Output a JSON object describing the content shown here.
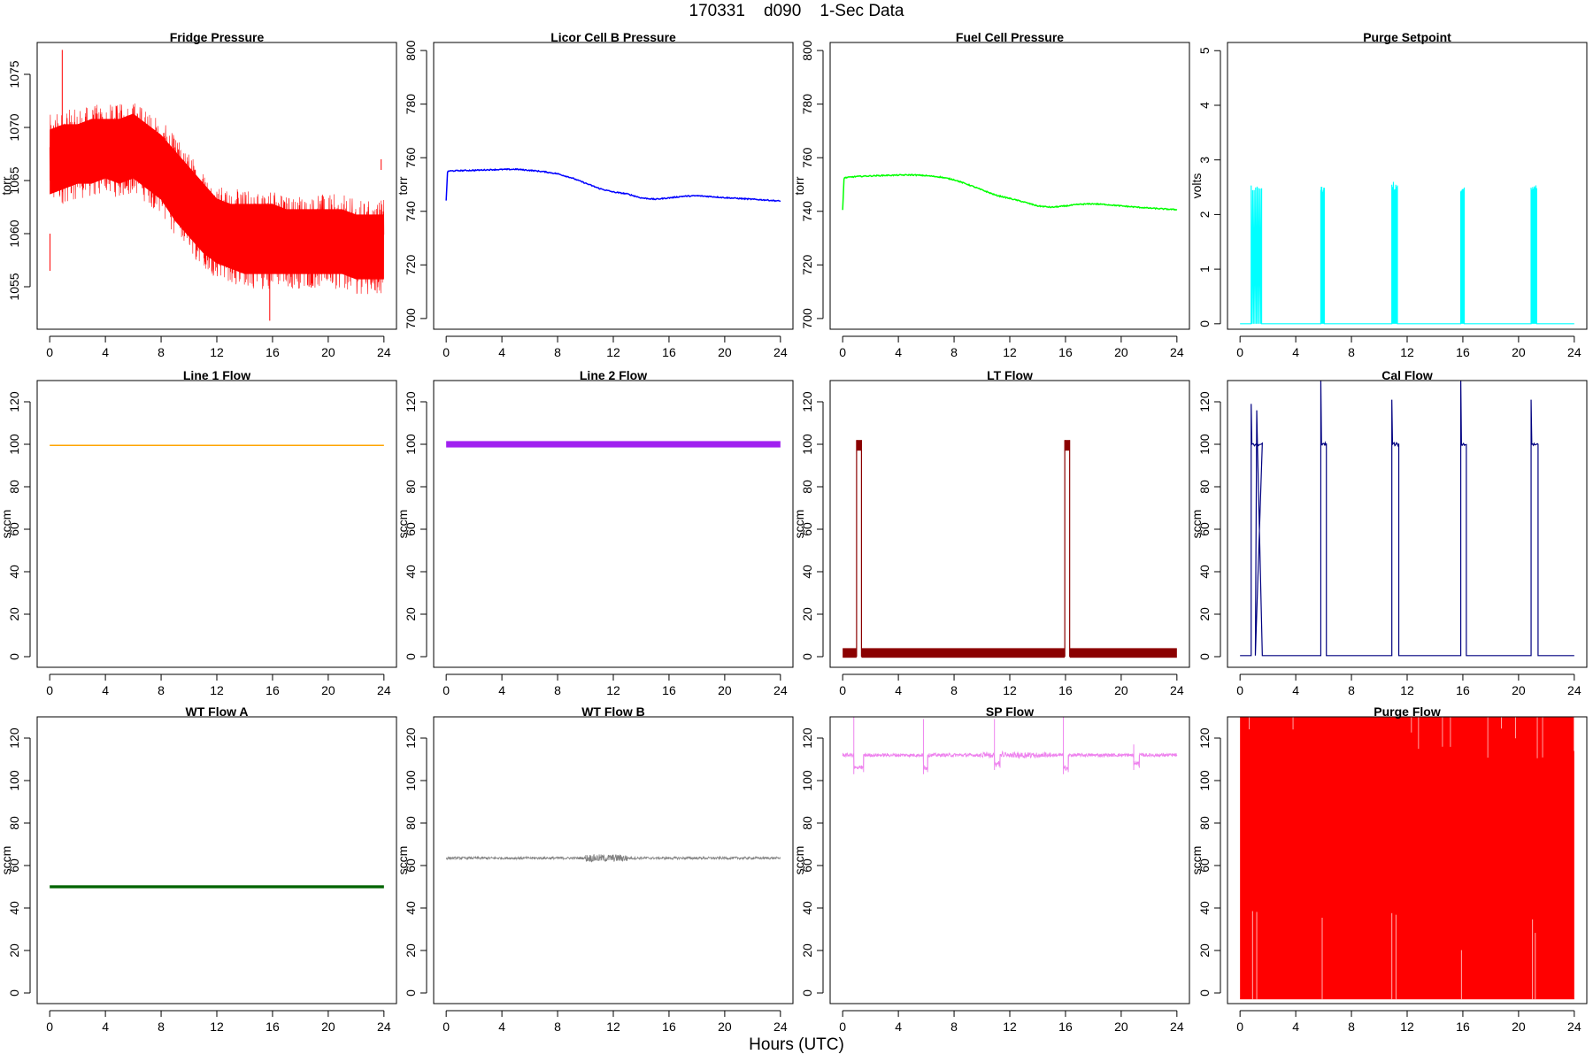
{
  "figure": {
    "title": "170331    d090    1-Sec Data",
    "xlabel": "Hours (UTC)"
  },
  "chart_data": [
    {
      "type": "line",
      "title": "Fridge Pressure",
      "ylabel": "torr",
      "color": "#ff0000",
      "xlim": [
        -0.9,
        24.9
      ],
      "ylim": [
        1051,
        1078
      ],
      "xticks": [
        0,
        4,
        8,
        12,
        16,
        20,
        24
      ],
      "yticks": [
        1055,
        1060,
        1065,
        1070,
        1075
      ],
      "band": {
        "x": [
          0,
          1,
          2,
          3,
          4,
          5,
          6,
          7,
          8,
          9,
          10,
          11,
          12,
          13,
          14,
          15,
          16,
          17,
          18,
          19,
          20,
          21,
          22,
          23,
          24
        ],
        "lower": [
          1062.5,
          1063,
          1063.5,
          1063.5,
          1064,
          1063.5,
          1064,
          1063,
          1062,
          1060,
          1058.5,
          1057,
          1056,
          1055.5,
          1055,
          1055,
          1055,
          1055,
          1055,
          1055,
          1055,
          1055,
          1054.5,
          1054.5,
          1054.5
        ],
        "upper": [
          1071,
          1071.5,
          1071.5,
          1072,
          1072,
          1072,
          1072.5,
          1071.5,
          1070.5,
          1069,
          1067.5,
          1066,
          1064.5,
          1064,
          1064,
          1064,
          1064,
          1063.5,
          1063.5,
          1063.5,
          1063.5,
          1063.5,
          1063,
          1063,
          1063
        ]
      },
      "spikes": [
        [
          0.9,
          1077.3
        ],
        [
          15.8,
          1051.8
        ],
        [
          0.02,
          1056.5
        ],
        [
          23.8,
          1067
        ]
      ]
    },
    {
      "type": "line",
      "title": "Licor Cell B Pressure",
      "ylabel": "torr",
      "color": "#0000ff",
      "xlim": [
        -0.9,
        24.9
      ],
      "ylim": [
        696,
        803
      ],
      "xticks": [
        0,
        4,
        8,
        12,
        16,
        20,
        24
      ],
      "yticks": [
        700,
        720,
        740,
        760,
        780,
        800
      ],
      "series": {
        "x": [
          0,
          0.1,
          1,
          2,
          3,
          4,
          5,
          6,
          7,
          8,
          9,
          10,
          11,
          12,
          13,
          14,
          15,
          16,
          17,
          18,
          19,
          20,
          21,
          22,
          23,
          24
        ],
        "y": [
          744,
          755,
          755.2,
          755.3,
          755.5,
          755.6,
          755.7,
          755.3,
          754.8,
          754,
          752.5,
          750.5,
          748.5,
          747.2,
          746.5,
          745,
          744.5,
          745,
          745.6,
          745.8,
          745.5,
          745.1,
          744.8,
          744.5,
          744.2,
          743.8
        ]
      }
    },
    {
      "type": "line",
      "title": "Fuel Cell Pressure",
      "ylabel": "torr",
      "color": "#00ff00",
      "xlim": [
        -0.9,
        24.9
      ],
      "ylim": [
        696,
        803
      ],
      "xticks": [
        0,
        4,
        8,
        12,
        16,
        20,
        24
      ],
      "yticks": [
        700,
        720,
        740,
        760,
        780,
        800
      ],
      "series": {
        "x": [
          0,
          0.1,
          1,
          2,
          3,
          4,
          5,
          6,
          7,
          8,
          9,
          10,
          11,
          12,
          13,
          14,
          15,
          16,
          17,
          18,
          19,
          20,
          21,
          22,
          23,
          24
        ],
        "y": [
          740.5,
          752.5,
          753,
          753.2,
          753.4,
          753.5,
          753.6,
          753.3,
          752.8,
          751.8,
          750,
          748,
          746,
          744.8,
          743.5,
          742,
          741.5,
          742,
          742.6,
          742.8,
          742.5,
          742,
          741.6,
          741.2,
          740.9,
          740.6
        ]
      }
    },
    {
      "type": "line",
      "title": "Purge Setpoint",
      "ylabel": "volts",
      "color": "#00ffff",
      "xlim": [
        -0.9,
        24.9
      ],
      "ylim": [
        -0.1,
        5.15
      ],
      "xticks": [
        0,
        4,
        8,
        12,
        16,
        20,
        24
      ],
      "yticks": [
        0,
        1,
        2,
        3,
        4,
        5
      ],
      "baseline": 0,
      "pulses": [
        {
          "start": 0.8,
          "end": 1.55,
          "height": 2.55
        },
        {
          "start": 5.8,
          "end": 6.05,
          "height": 2.55
        },
        {
          "start": 10.9,
          "end": 11.3,
          "height": 2.6
        },
        {
          "start": 15.85,
          "end": 16.1,
          "height": 2.5
        },
        {
          "start": 20.9,
          "end": 21.3,
          "height": 2.6
        }
      ]
    },
    {
      "type": "line",
      "title": "Line 1 Flow",
      "ylabel": "sccm",
      "color": "#ffa500",
      "xlim": [
        -0.9,
        24.9
      ],
      "ylim": [
        -5,
        130
      ],
      "xticks": [
        0,
        4,
        8,
        12,
        16,
        20,
        24
      ],
      "yticks": [
        0,
        20,
        40,
        60,
        80,
        100,
        120
      ],
      "constant": 99.5,
      "thickness": 1.5
    },
    {
      "type": "line",
      "title": "Line 2 Flow",
      "ylabel": "sccm",
      "color": "#a020f0",
      "xlim": [
        -0.9,
        24.9
      ],
      "ylim": [
        -5,
        130
      ],
      "xticks": [
        0,
        4,
        8,
        12,
        16,
        20,
        24
      ],
      "yticks": [
        0,
        20,
        40,
        60,
        80,
        100,
        120
      ],
      "constant_band": [
        98.5,
        101.5
      ]
    },
    {
      "type": "line",
      "title": "LT Flow",
      "ylabel": "sccm",
      "color": "#8b0000",
      "xlim": [
        -0.9,
        24.9
      ],
      "ylim": [
        -5,
        130
      ],
      "xticks": [
        0,
        4,
        8,
        12,
        16,
        20,
        24
      ],
      "yticks": [
        0,
        20,
        40,
        60,
        80,
        100,
        120
      ],
      "baseline_band": [
        -0.5,
        4
      ],
      "pulses": [
        {
          "start": 1.0,
          "end": 1.35,
          "height": 102,
          "low": 97
        },
        {
          "start": 15.95,
          "end": 16.3,
          "height": 102,
          "low": 97
        }
      ]
    },
    {
      "type": "line",
      "title": "Cal Flow",
      "ylabel": "sccm",
      "color": "#000080",
      "xlim": [
        -0.9,
        24.9
      ],
      "ylim": [
        -5,
        130
      ],
      "xticks": [
        0,
        4,
        8,
        12,
        16,
        20,
        24
      ],
      "yticks": [
        0,
        20,
        40,
        60,
        80,
        100,
        120
      ],
      "baseline": 0.5,
      "pulses": [
        {
          "start": 0.8,
          "end": 1.6,
          "height": 100,
          "spike": 119
        },
        {
          "start": 5.8,
          "end": 6.2,
          "height": 100,
          "spike": 131
        },
        {
          "start": 10.9,
          "end": 11.4,
          "height": 100,
          "spike": 121
        },
        {
          "start": 15.85,
          "end": 16.25,
          "height": 100,
          "spike": 131
        },
        {
          "start": 20.9,
          "end": 21.4,
          "height": 100,
          "spike": 121
        }
      ]
    },
    {
      "type": "line",
      "title": "WT Flow A",
      "ylabel": "sccm",
      "color": "#006400",
      "xlim": [
        -0.9,
        24.9
      ],
      "ylim": [
        -5,
        130
      ],
      "xticks": [
        0,
        4,
        8,
        12,
        16,
        20,
        24
      ],
      "yticks": [
        0,
        20,
        40,
        60,
        80,
        100,
        120
      ],
      "constant_band": [
        49.3,
        50.7
      ]
    },
    {
      "type": "line",
      "title": "WT Flow B",
      "ylabel": "sccm",
      "color": "#808080",
      "xlim": [
        -0.9,
        24.9
      ],
      "ylim": [
        -5,
        130
      ],
      "xticks": [
        0,
        4,
        8,
        12,
        16,
        20,
        24
      ],
      "yticks": [
        0,
        20,
        40,
        60,
        80,
        100,
        120
      ],
      "constant": 63.5,
      "noise": 0.6
    },
    {
      "type": "line",
      "title": "SP Flow",
      "ylabel": "sccm",
      "color": "#ee82ee",
      "xlim": [
        -0.9,
        24.9
      ],
      "ylim": [
        -5,
        130
      ],
      "xticks": [
        0,
        4,
        8,
        12,
        16,
        20,
        24
      ],
      "yticks": [
        0,
        20,
        40,
        60,
        80,
        100,
        120
      ],
      "baseline": 112,
      "noise": 0.8,
      "dips": [
        {
          "start": 0.8,
          "end": 1.5,
          "low": 106,
          "spike": 132
        },
        {
          "start": 5.8,
          "end": 6.1,
          "low": 106,
          "spike": 129
        },
        {
          "start": 10.9,
          "end": 11.3,
          "low": 108,
          "spike": 129
        },
        {
          "start": 15.85,
          "end": 16.2,
          "low": 106,
          "spike": 131
        },
        {
          "start": 20.9,
          "end": 21.3,
          "low": 108,
          "spike": 117
        }
      ]
    },
    {
      "type": "area",
      "title": "Purge Flow",
      "ylabel": "sccm",
      "color": "#ff0000",
      "xlim": [
        -0.9,
        24.9
      ],
      "ylim": [
        -5,
        130
      ],
      "xticks": [
        0,
        4,
        8,
        12,
        16,
        20,
        24
      ],
      "yticks": [
        0,
        20,
        40,
        60,
        80,
        100,
        120
      ],
      "fill_range": [
        -3,
        130
      ],
      "gaps": [
        0.9,
        1.2,
        5.9,
        10.9,
        11.2,
        15.9,
        21.0,
        21.2
      ]
    }
  ]
}
